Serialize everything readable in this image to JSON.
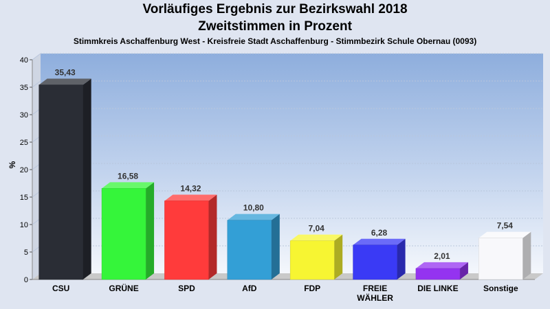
{
  "header": {
    "title_line1": "Vorläufiges Ergebnis zur Bezirkswahl 2018",
    "title_line2": "Zweitstimmen in Prozent",
    "subtitle": "Stimmkreis Aschaffenburg West - Kreisfreie Stadt Aschaffenburg - Stimmbezirk Schule Obernau (0093)"
  },
  "chart_data": {
    "type": "bar",
    "title": "Vorläufiges Ergebnis zur Bezirkswahl 2018",
    "subtitle": "Zweitstimmen in Prozent",
    "ylabel": "%",
    "xlabel": "",
    "ylim": [
      0,
      40
    ],
    "yticks": [
      0,
      5,
      10,
      15,
      20,
      25,
      30,
      35,
      40
    ],
    "grid": true,
    "legend": "none",
    "categories": [
      "CSU",
      "GRÜNE",
      "SPD",
      "AfD",
      "FDP",
      "FREIE WÄHLER",
      "DIE LINKE",
      "Sonstige"
    ],
    "category_lines": [
      [
        "CSU"
      ],
      [
        "GRÜNE"
      ],
      [
        "SPD"
      ],
      [
        "AfD"
      ],
      [
        "FDP"
      ],
      [
        "FREIE",
        "WÄHLER"
      ],
      [
        "DIE LINKE"
      ],
      [
        "Sonstige"
      ]
    ],
    "values": [
      35.43,
      16.58,
      14.32,
      10.8,
      7.04,
      6.28,
      2.01,
      7.54
    ],
    "value_labels": [
      "35,43",
      "16,58",
      "14,32",
      "10,80",
      "7,04",
      "6,28",
      "2,01",
      "7,54"
    ],
    "colors": [
      "#2a2d35",
      "#35f53a",
      "#ff3b3b",
      "#339fd6",
      "#f7f532",
      "#3a3af5",
      "#9433f0",
      "#f8f8fb"
    ]
  }
}
